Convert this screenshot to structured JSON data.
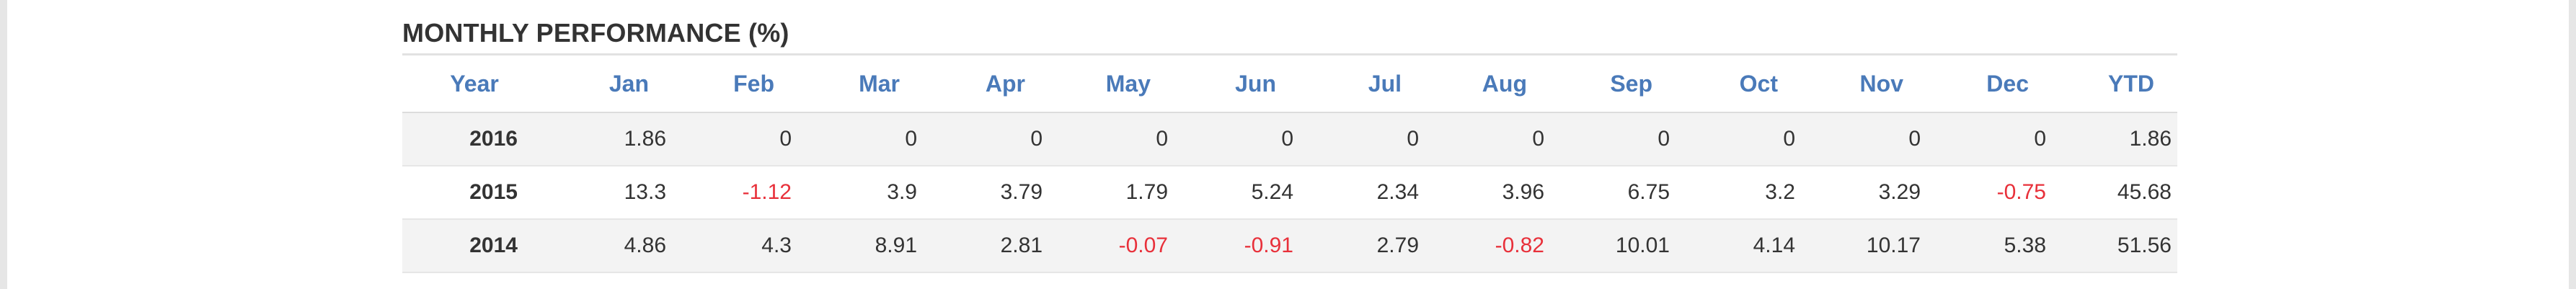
{
  "title": "MONTHLY PERFORMANCE (%)",
  "columns": [
    "Year",
    "Jan",
    "Feb",
    "Mar",
    "Apr",
    "May",
    "Jun",
    "Jul",
    "Aug",
    "Sep",
    "Oct",
    "Nov",
    "Dec",
    "YTD"
  ],
  "rows": [
    [
      "2016",
      "1.86",
      "0",
      "0",
      "0",
      "0",
      "0",
      "0",
      "0",
      "0",
      "0",
      "0",
      "0",
      "1.86"
    ],
    [
      "2015",
      "13.3",
      "-1.12",
      "3.9",
      "3.79",
      "1.79",
      "5.24",
      "2.34",
      "3.96",
      "6.75",
      "3.2",
      "3.29",
      "-0.75",
      "45.68"
    ],
    [
      "2014",
      "4.86",
      "4.3",
      "8.91",
      "2.81",
      "-0.07",
      "-0.91",
      "2.79",
      "-0.82",
      "10.01",
      "4.14",
      "10.17",
      "5.38",
      "51.56"
    ]
  ],
  "colors": {
    "header_text": "#4a7ab9",
    "negative_text": "#e8303a",
    "body_text": "#333333",
    "stripe": "#f3f3f3"
  }
}
